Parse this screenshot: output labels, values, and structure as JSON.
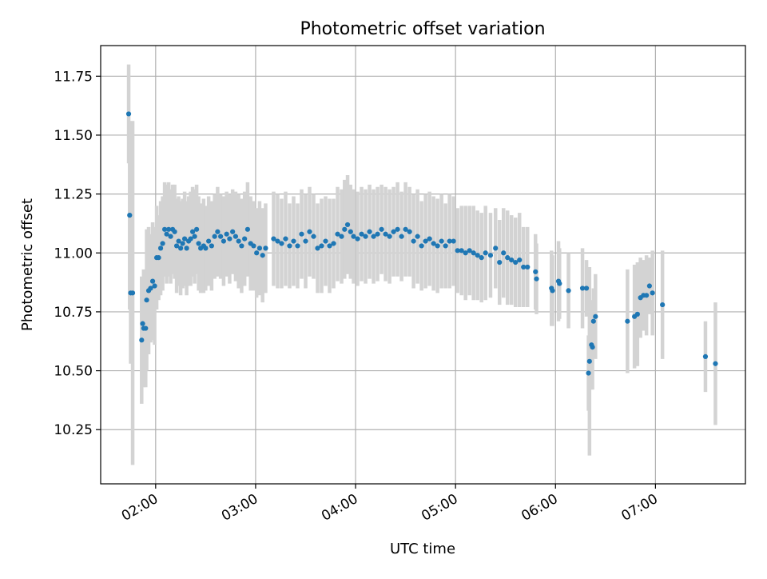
{
  "chart_data": {
    "type": "scatter",
    "title": "Photometric offset variation",
    "xlabel": "UTC time",
    "ylabel": "Photometric offset",
    "x_unit": "hours UTC",
    "xlim": [
      1.45,
      7.9
    ],
    "ylim": [
      10.02,
      11.88
    ],
    "x_ticks": [
      2,
      3,
      4,
      5,
      6,
      7
    ],
    "x_tick_labels": [
      "02:00",
      "03:00",
      "04:00",
      "05:00",
      "06:00",
      "07:00"
    ],
    "y_ticks": [
      10.25,
      10.5,
      10.75,
      11.0,
      11.25,
      11.5,
      11.75
    ],
    "y_tick_labels": [
      "10.25",
      "10.50",
      "10.75",
      "11.00",
      "11.25",
      "11.50",
      "11.75"
    ],
    "grid": true,
    "point_color": "#1f77b4",
    "errorbar_color": "#d3d3d3",
    "points": [
      {
        "x": 1.73,
        "y": 11.59,
        "err": 0.21
      },
      {
        "x": 1.74,
        "y": 11.16,
        "err": 0.4
      },
      {
        "x": 1.75,
        "y": 10.83,
        "err": 0.3
      },
      {
        "x": 1.77,
        "y": 10.83,
        "err": 0.73
      },
      {
        "x": 1.86,
        "y": 10.63,
        "err": 0.27
      },
      {
        "x": 1.87,
        "y": 10.7,
        "err": 0.16
      },
      {
        "x": 1.88,
        "y": 10.68,
        "err": 0.25
      },
      {
        "x": 1.9,
        "y": 10.68,
        "err": 0.25
      },
      {
        "x": 1.91,
        "y": 10.8,
        "err": 0.3
      },
      {
        "x": 1.93,
        "y": 10.84,
        "err": 0.27
      },
      {
        "x": 1.95,
        "y": 10.85,
        "err": 0.23
      },
      {
        "x": 1.97,
        "y": 10.88,
        "err": 0.25
      },
      {
        "x": 1.99,
        "y": 10.86,
        "err": 0.25
      },
      {
        "x": 2.01,
        "y": 10.98,
        "err": 0.22
      },
      {
        "x": 2.03,
        "y": 10.98,
        "err": 0.18
      },
      {
        "x": 2.05,
        "y": 11.02,
        "err": 0.2
      },
      {
        "x": 2.07,
        "y": 11.04,
        "err": 0.2
      },
      {
        "x": 2.09,
        "y": 11.1,
        "err": 0.2
      },
      {
        "x": 2.11,
        "y": 11.08,
        "err": 0.21
      },
      {
        "x": 2.13,
        "y": 11.1,
        "err": 0.2
      },
      {
        "x": 2.15,
        "y": 11.07,
        "err": 0.2
      },
      {
        "x": 2.17,
        "y": 11.1,
        "err": 0.19
      },
      {
        "x": 2.19,
        "y": 11.09,
        "err": 0.2
      },
      {
        "x": 2.21,
        "y": 11.03,
        "err": 0.2
      },
      {
        "x": 2.23,
        "y": 11.05,
        "err": 0.19
      },
      {
        "x": 2.25,
        "y": 11.02,
        "err": 0.2
      },
      {
        "x": 2.27,
        "y": 11.04,
        "err": 0.19
      },
      {
        "x": 2.29,
        "y": 11.06,
        "err": 0.2
      },
      {
        "x": 2.31,
        "y": 11.02,
        "err": 0.2
      },
      {
        "x": 2.33,
        "y": 11.05,
        "err": 0.19
      },
      {
        "x": 2.35,
        "y": 11.06,
        "err": 0.2
      },
      {
        "x": 2.37,
        "y": 11.09,
        "err": 0.19
      },
      {
        "x": 2.39,
        "y": 11.07,
        "err": 0.2
      },
      {
        "x": 2.41,
        "y": 11.1,
        "err": 0.19
      },
      {
        "x": 2.43,
        "y": 11.04,
        "err": 0.2
      },
      {
        "x": 2.45,
        "y": 11.02,
        "err": 0.19
      },
      {
        "x": 2.48,
        "y": 11.03,
        "err": 0.2
      },
      {
        "x": 2.5,
        "y": 11.02,
        "err": 0.18
      },
      {
        "x": 2.53,
        "y": 11.05,
        "err": 0.19
      },
      {
        "x": 2.56,
        "y": 11.03,
        "err": 0.19
      },
      {
        "x": 2.59,
        "y": 11.07,
        "err": 0.18
      },
      {
        "x": 2.62,
        "y": 11.09,
        "err": 0.19
      },
      {
        "x": 2.65,
        "y": 11.07,
        "err": 0.18
      },
      {
        "x": 2.68,
        "y": 11.05,
        "err": 0.19
      },
      {
        "x": 2.71,
        "y": 11.08,
        "err": 0.18
      },
      {
        "x": 2.74,
        "y": 11.06,
        "err": 0.19
      },
      {
        "x": 2.77,
        "y": 11.09,
        "err": 0.18
      },
      {
        "x": 2.8,
        "y": 11.07,
        "err": 0.19
      },
      {
        "x": 2.83,
        "y": 11.05,
        "err": 0.2
      },
      {
        "x": 2.86,
        "y": 11.03,
        "err": 0.2
      },
      {
        "x": 2.89,
        "y": 11.06,
        "err": 0.2
      },
      {
        "x": 2.92,
        "y": 11.1,
        "err": 0.2
      },
      {
        "x": 2.95,
        "y": 11.04,
        "err": 0.2
      },
      {
        "x": 2.98,
        "y": 11.03,
        "err": 0.19
      },
      {
        "x": 3.01,
        "y": 11.0,
        "err": 0.19
      },
      {
        "x": 3.04,
        "y": 11.02,
        "err": 0.2
      },
      {
        "x": 3.07,
        "y": 10.99,
        "err": 0.2
      },
      {
        "x": 3.1,
        "y": 11.02,
        "err": 0.19
      },
      {
        "x": 3.18,
        "y": 11.06,
        "err": 0.2
      },
      {
        "x": 3.22,
        "y": 11.05,
        "err": 0.2
      },
      {
        "x": 3.26,
        "y": 11.04,
        "err": 0.19
      },
      {
        "x": 3.3,
        "y": 11.06,
        "err": 0.2
      },
      {
        "x": 3.34,
        "y": 11.03,
        "err": 0.18
      },
      {
        "x": 3.38,
        "y": 11.05,
        "err": 0.19
      },
      {
        "x": 3.42,
        "y": 11.03,
        "err": 0.18
      },
      {
        "x": 3.46,
        "y": 11.08,
        "err": 0.19
      },
      {
        "x": 3.5,
        "y": 11.05,
        "err": 0.2
      },
      {
        "x": 3.54,
        "y": 11.09,
        "err": 0.19
      },
      {
        "x": 3.58,
        "y": 11.07,
        "err": 0.18
      },
      {
        "x": 3.62,
        "y": 11.02,
        "err": 0.19
      },
      {
        "x": 3.66,
        "y": 11.03,
        "err": 0.2
      },
      {
        "x": 3.7,
        "y": 11.05,
        "err": 0.19
      },
      {
        "x": 3.74,
        "y": 11.03,
        "err": 0.2
      },
      {
        "x": 3.78,
        "y": 11.04,
        "err": 0.19
      },
      {
        "x": 3.82,
        "y": 11.08,
        "err": 0.2
      },
      {
        "x": 3.86,
        "y": 11.07,
        "err": 0.2
      },
      {
        "x": 3.89,
        "y": 11.1,
        "err": 0.21
      },
      {
        "x": 3.92,
        "y": 11.12,
        "err": 0.21
      },
      {
        "x": 3.95,
        "y": 11.09,
        "err": 0.2
      },
      {
        "x": 3.98,
        "y": 11.07,
        "err": 0.2
      },
      {
        "x": 4.02,
        "y": 11.06,
        "err": 0.2
      },
      {
        "x": 4.06,
        "y": 11.08,
        "err": 0.2
      },
      {
        "x": 4.1,
        "y": 11.07,
        "err": 0.2
      },
      {
        "x": 4.14,
        "y": 11.09,
        "err": 0.2
      },
      {
        "x": 4.18,
        "y": 11.07,
        "err": 0.2
      },
      {
        "x": 4.22,
        "y": 11.08,
        "err": 0.2
      },
      {
        "x": 4.26,
        "y": 11.1,
        "err": 0.19
      },
      {
        "x": 4.3,
        "y": 11.08,
        "err": 0.2
      },
      {
        "x": 4.34,
        "y": 11.07,
        "err": 0.2
      },
      {
        "x": 4.38,
        "y": 11.09,
        "err": 0.19
      },
      {
        "x": 4.42,
        "y": 11.1,
        "err": 0.2
      },
      {
        "x": 4.46,
        "y": 11.07,
        "err": 0.19
      },
      {
        "x": 4.5,
        "y": 11.1,
        "err": 0.2
      },
      {
        "x": 4.54,
        "y": 11.09,
        "err": 0.19
      },
      {
        "x": 4.58,
        "y": 11.05,
        "err": 0.2
      },
      {
        "x": 4.62,
        "y": 11.07,
        "err": 0.2
      },
      {
        "x": 4.66,
        "y": 11.03,
        "err": 0.19
      },
      {
        "x": 4.7,
        "y": 11.05,
        "err": 0.2
      },
      {
        "x": 4.74,
        "y": 11.06,
        "err": 0.2
      },
      {
        "x": 4.78,
        "y": 11.04,
        "err": 0.2
      },
      {
        "x": 4.82,
        "y": 11.03,
        "err": 0.2
      },
      {
        "x": 4.86,
        "y": 11.05,
        "err": 0.2
      },
      {
        "x": 4.9,
        "y": 11.03,
        "err": 0.18
      },
      {
        "x": 4.94,
        "y": 11.05,
        "err": 0.2
      },
      {
        "x": 4.98,
        "y": 11.05,
        "err": 0.19
      },
      {
        "x": 5.02,
        "y": 11.01,
        "err": 0.18
      },
      {
        "x": 5.06,
        "y": 11.01,
        "err": 0.19
      },
      {
        "x": 5.1,
        "y": 11.0,
        "err": 0.2
      },
      {
        "x": 5.14,
        "y": 11.01,
        "err": 0.19
      },
      {
        "x": 5.18,
        "y": 11.0,
        "err": 0.2
      },
      {
        "x": 5.22,
        "y": 10.99,
        "err": 0.19
      },
      {
        "x": 5.26,
        "y": 10.98,
        "err": 0.19
      },
      {
        "x": 5.3,
        "y": 11.0,
        "err": 0.2
      },
      {
        "x": 5.35,
        "y": 10.99,
        "err": 0.18
      },
      {
        "x": 5.4,
        "y": 11.02,
        "err": 0.17
      },
      {
        "x": 5.44,
        "y": 10.96,
        "err": 0.18
      },
      {
        "x": 5.48,
        "y": 11.0,
        "err": 0.19
      },
      {
        "x": 5.52,
        "y": 10.98,
        "err": 0.2
      },
      {
        "x": 5.56,
        "y": 10.97,
        "err": 0.19
      },
      {
        "x": 5.6,
        "y": 10.96,
        "err": 0.19
      },
      {
        "x": 5.64,
        "y": 10.97,
        "err": 0.2
      },
      {
        "x": 5.68,
        "y": 10.94,
        "err": 0.17
      },
      {
        "x": 5.72,
        "y": 10.94,
        "err": 0.17
      },
      {
        "x": 5.8,
        "y": 10.92,
        "err": 0.16
      },
      {
        "x": 5.81,
        "y": 10.89,
        "err": 0.15
      },
      {
        "x": 5.96,
        "y": 10.85,
        "err": 0.16
      },
      {
        "x": 5.97,
        "y": 10.84,
        "err": 0.15
      },
      {
        "x": 6.03,
        "y": 10.88,
        "err": 0.17
      },
      {
        "x": 6.04,
        "y": 10.87,
        "err": 0.15
      },
      {
        "x": 6.13,
        "y": 10.84,
        "err": 0.16
      },
      {
        "x": 6.27,
        "y": 10.85,
        "err": 0.17
      },
      {
        "x": 6.31,
        "y": 10.85,
        "err": 0.12
      },
      {
        "x": 6.33,
        "y": 10.49,
        "err": 0.16
      },
      {
        "x": 6.34,
        "y": 10.54,
        "err": 0.4
      },
      {
        "x": 6.36,
        "y": 10.61,
        "err": 0.19
      },
      {
        "x": 6.37,
        "y": 10.6,
        "err": 0.18
      },
      {
        "x": 6.38,
        "y": 10.71,
        "err": 0.14
      },
      {
        "x": 6.4,
        "y": 10.73,
        "err": 0.18
      },
      {
        "x": 6.72,
        "y": 10.71,
        "err": 0.22
      },
      {
        "x": 6.79,
        "y": 10.73,
        "err": 0.22
      },
      {
        "x": 6.82,
        "y": 10.74,
        "err": 0.22
      },
      {
        "x": 6.85,
        "y": 10.81,
        "err": 0.17
      },
      {
        "x": 6.88,
        "y": 10.82,
        "err": 0.15
      },
      {
        "x": 6.91,
        "y": 10.82,
        "err": 0.17
      },
      {
        "x": 6.94,
        "y": 10.86,
        "err": 0.12
      },
      {
        "x": 6.97,
        "y": 10.83,
        "err": 0.18
      },
      {
        "x": 7.07,
        "y": 10.78,
        "err": 0.23
      },
      {
        "x": 7.5,
        "y": 10.56,
        "err": 0.15
      },
      {
        "x": 7.6,
        "y": 10.53,
        "err": 0.26
      }
    ]
  }
}
